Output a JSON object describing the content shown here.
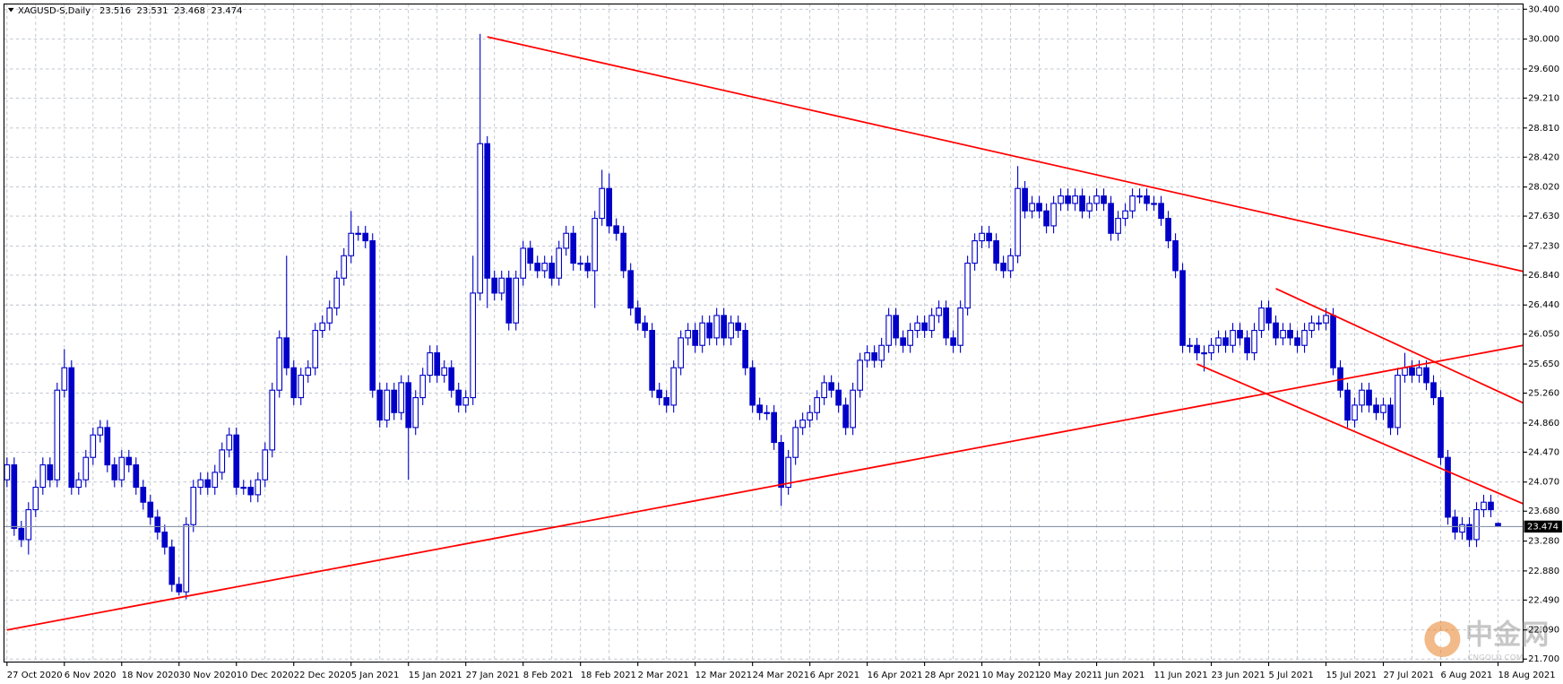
{
  "chart_data": {
    "type": "candlestick",
    "title": "XAGUSD-S,Daily",
    "categories": [
      "27 Oct 2020",
      null,
      null,
      null,
      null,
      null,
      null,
      null,
      "6 Nov 2020",
      null,
      null,
      null,
      null,
      null,
      null,
      null,
      "18 Nov 2020",
      null,
      null,
      null,
      null,
      null,
      null,
      null,
      "30 Nov 2020",
      null,
      null,
      null,
      null,
      null,
      null,
      null,
      "10 Dec 2020",
      null,
      null,
      null,
      null,
      null,
      null,
      null,
      "22 Dec 2020",
      null,
      null,
      null,
      null,
      null,
      null,
      null,
      "5 Jan 2021",
      null,
      null,
      null,
      null,
      null,
      null,
      null,
      "15 Jan 2021",
      null,
      null,
      null,
      null,
      null,
      null,
      null,
      "27 Jan 2021",
      null,
      null,
      null,
      null,
      null,
      null,
      null,
      "8 Feb 2021",
      null,
      null,
      null,
      null,
      null,
      null,
      null,
      "18 Feb 2021",
      null,
      null,
      null,
      null,
      null,
      null,
      null,
      "2 Mar 2021",
      null,
      null,
      null,
      null,
      null,
      null,
      null,
      "12 Mar 2021",
      null,
      null,
      null,
      null,
      null,
      null,
      null,
      "24 Mar 2021",
      null,
      null,
      null,
      null,
      null,
      null,
      null,
      "6 Apr 2021",
      null,
      null,
      null,
      null,
      null,
      null,
      null,
      "16 Apr 2021",
      null,
      null,
      null,
      null,
      null,
      null,
      null,
      "28 Apr 2021",
      null,
      null,
      null,
      null,
      null,
      null,
      null,
      "10 May 2021",
      null,
      null,
      null,
      null,
      null,
      null,
      null,
      "20 May 2021",
      null,
      null,
      null,
      null,
      null,
      null,
      null,
      "1 Jun 2021",
      null,
      null,
      null,
      null,
      null,
      null,
      null,
      "11 Jun 2021",
      null,
      null,
      null,
      null,
      null,
      null,
      null,
      "23 Jun 2021",
      null,
      null,
      null,
      null,
      null,
      null,
      null,
      "5 Jul 2021",
      null,
      null,
      null,
      null,
      null,
      null,
      null,
      "15 Jul 2021",
      null,
      null,
      null,
      null,
      null,
      null,
      null,
      "27 Jul 2021",
      null,
      null,
      null,
      null,
      null,
      null,
      null,
      "6 Aug 2021",
      null,
      null,
      null,
      null,
      null,
      null,
      null,
      "18 Aug 2021"
    ],
    "open": [
      24.1,
      24.3,
      23.45,
      23.3,
      23.7,
      24.0,
      24.3,
      24.1,
      25.3,
      25.6,
      24.0,
      24.1,
      24.4,
      24.7,
      24.8,
      24.3,
      24.1,
      24.4,
      24.3,
      24.0,
      23.8,
      23.6,
      23.4,
      23.2,
      22.7,
      22.6,
      23.5,
      24.0,
      24.1,
      24.0,
      24.2,
      24.5,
      24.7,
      24.0,
      24.0,
      23.9,
      24.1,
      24.5,
      25.3,
      26.0,
      25.6,
      25.2,
      25.5,
      25.6,
      26.1,
      26.2,
      26.4,
      26.8,
      27.1,
      27.4,
      27.4,
      27.3,
      25.3,
      24.9,
      25.3,
      25.0,
      25.4,
      24.8,
      25.2,
      25.5,
      25.8,
      25.5,
      25.6,
      25.3,
      25.1,
      25.2,
      26.6,
      28.6,
      26.8,
      26.6,
      26.8,
      26.2,
      26.8,
      27.2,
      27.0,
      26.9,
      27.0,
      26.8,
      27.2,
      27.4,
      27.0,
      27.0,
      26.9,
      27.6,
      28.0,
      27.5,
      27.4,
      26.9,
      26.4,
      26.2,
      26.1,
      25.3,
      25.2,
      25.1,
      25.6,
      26.0,
      26.1,
      25.9,
      26.2,
      26.0,
      26.3,
      26.0,
      26.2,
      26.1,
      25.6,
      25.1,
      25.0,
      25.0,
      24.6,
      24.0,
      24.4,
      24.8,
      24.9,
      25.0,
      25.2,
      25.4,
      25.3,
      25.1,
      24.8,
      25.3,
      25.7,
      25.8,
      25.7,
      25.9,
      26.3,
      26.0,
      25.9,
      26.1,
      26.2,
      26.1,
      26.3,
      26.4,
      26.0,
      25.9,
      26.4,
      27.0,
      27.3,
      27.4,
      27.3,
      27.0,
      26.9,
      27.1,
      28.0,
      27.7,
      27.8,
      27.7,
      27.5,
      27.8,
      27.9,
      27.8,
      27.9,
      27.7,
      27.8,
      27.9,
      27.8,
      27.4,
      27.6,
      27.7,
      27.9,
      27.9,
      27.8,
      27.8,
      27.6,
      27.3,
      26.9,
      25.9,
      25.9,
      25.8,
      25.8,
      25.9,
      26.0,
      25.9,
      26.1,
      26.0,
      25.8,
      26.1,
      26.4,
      26.2,
      26.0,
      26.1,
      26.0,
      25.9,
      26.1,
      26.2,
      26.2,
      26.3,
      25.6,
      25.3,
      24.9,
      25.1,
      25.3,
      25.1,
      25.0,
      25.1,
      24.8,
      25.5,
      25.6,
      25.5,
      25.6,
      25.4,
      25.2,
      24.4,
      23.6,
      23.4,
      23.5,
      23.3,
      23.7,
      23.8,
      23.516
    ],
    "high": [
      24.4,
      24.4,
      23.55,
      23.8,
      24.1,
      24.4,
      24.4,
      25.4,
      25.85,
      25.7,
      24.2,
      24.5,
      24.8,
      24.9,
      24.9,
      24.4,
      24.5,
      24.5,
      24.4,
      24.1,
      23.9,
      23.7,
      23.5,
      23.3,
      22.8,
      23.6,
      24.1,
      24.2,
      24.2,
      24.3,
      24.6,
      24.8,
      24.8,
      24.1,
      24.1,
      24.2,
      24.6,
      25.4,
      26.1,
      27.1,
      25.7,
      25.6,
      25.7,
      26.2,
      26.3,
      26.5,
      26.9,
      27.2,
      27.7,
      27.5,
      27.5,
      27.4,
      25.4,
      25.4,
      25.4,
      25.5,
      25.5,
      25.3,
      25.6,
      25.9,
      25.9,
      25.7,
      25.7,
      25.4,
      25.3,
      27.1,
      30.07,
      28.7,
      26.9,
      26.9,
      26.9,
      26.9,
      27.3,
      27.3,
      27.1,
      27.1,
      27.1,
      27.3,
      27.5,
      27.5,
      27.1,
      27.1,
      27.7,
      28.25,
      28.2,
      27.6,
      27.5,
      27.0,
      26.5,
      26.3,
      26.2,
      25.4,
      25.3,
      25.7,
      26.1,
      26.2,
      26.2,
      26.3,
      26.3,
      26.4,
      26.4,
      26.3,
      26.3,
      26.2,
      25.7,
      25.2,
      25.1,
      25.1,
      24.7,
      24.5,
      24.9,
      25.0,
      25.1,
      25.3,
      25.5,
      25.5,
      25.4,
      25.2,
      25.4,
      25.8,
      25.9,
      25.9,
      26.0,
      26.4,
      26.4,
      26.1,
      26.2,
      26.3,
      26.3,
      26.4,
      26.5,
      26.5,
      26.1,
      26.5,
      27.1,
      27.4,
      27.5,
      27.5,
      27.4,
      27.1,
      27.2,
      28.3,
      28.1,
      27.9,
      27.9,
      27.8,
      27.9,
      28.0,
      28.0,
      28.0,
      28.0,
      27.9,
      28.0,
      28.0,
      27.9,
      27.7,
      27.8,
      28.0,
      28.0,
      28.0,
      27.9,
      27.9,
      27.7,
      27.4,
      27.0,
      26.0,
      26.0,
      25.9,
      26.0,
      26.1,
      26.1,
      26.2,
      26.2,
      26.1,
      26.2,
      26.5,
      26.5,
      26.3,
      26.2,
      26.2,
      26.1,
      26.2,
      26.3,
      26.3,
      26.4,
      26.4,
      25.7,
      25.4,
      25.2,
      25.4,
      25.4,
      25.2,
      25.2,
      25.2,
      25.6,
      25.8,
      25.7,
      25.7,
      25.7,
      25.5,
      25.3,
      24.5,
      23.7,
      23.6,
      23.6,
      23.8,
      23.9,
      23.9,
      23.531
    ],
    "low": [
      24.0,
      23.35,
      23.2,
      23.1,
      23.6,
      23.9,
      24.0,
      24.0,
      25.2,
      23.9,
      23.9,
      24.0,
      24.3,
      24.6,
      24.2,
      24.0,
      24.0,
      24.2,
      23.9,
      23.7,
      23.5,
      23.3,
      23.1,
      22.6,
      22.55,
      22.5,
      23.4,
      23.9,
      23.9,
      23.9,
      24.1,
      24.4,
      23.9,
      23.9,
      23.8,
      23.8,
      24.0,
      24.4,
      25.2,
      25.5,
      25.1,
      25.1,
      25.4,
      25.5,
      26.0,
      26.1,
      26.3,
      26.7,
      27.0,
      27.3,
      27.2,
      25.2,
      24.8,
      24.8,
      24.9,
      24.9,
      24.1,
      24.7,
      25.1,
      25.4,
      25.4,
      25.4,
      25.2,
      25.0,
      25.0,
      25.1,
      26.5,
      26.4,
      26.5,
      26.5,
      26.1,
      26.1,
      26.7,
      26.9,
      26.8,
      26.8,
      26.7,
      26.7,
      27.1,
      26.9,
      26.9,
      26.8,
      26.4,
      27.5,
      27.4,
      27.3,
      26.8,
      26.3,
      26.1,
      26.0,
      25.2,
      25.1,
      25.0,
      25.0,
      25.5,
      25.9,
      25.8,
      25.8,
      25.9,
      25.9,
      25.9,
      25.9,
      26.0,
      25.5,
      25.0,
      24.9,
      24.9,
      24.5,
      23.75,
      23.9,
      24.3,
      24.7,
      24.8,
      24.9,
      25.1,
      25.2,
      25.0,
      24.7,
      24.7,
      25.2,
      25.6,
      25.6,
      25.6,
      25.8,
      25.9,
      25.8,
      25.8,
      26.0,
      26.0,
      26.0,
      26.2,
      25.9,
      25.8,
      25.8,
      26.3,
      26.9,
      27.2,
      27.2,
      26.9,
      26.8,
      26.8,
      27.0,
      27.6,
      27.6,
      27.6,
      27.4,
      27.4,
      27.7,
      27.7,
      27.7,
      27.6,
      27.6,
      27.7,
      27.7,
      27.3,
      27.3,
      27.5,
      27.6,
      27.8,
      27.7,
      27.7,
      27.5,
      27.2,
      26.8,
      25.8,
      25.8,
      25.7,
      25.55,
      25.7,
      25.8,
      25.8,
      25.8,
      25.9,
      25.7,
      25.7,
      26.0,
      26.1,
      25.9,
      25.9,
      25.9,
      25.8,
      25.8,
      26.0,
      26.1,
      26.1,
      25.5,
      25.2,
      24.8,
      24.8,
      25.0,
      25.0,
      24.9,
      24.9,
      24.7,
      24.7,
      25.4,
      25.4,
      25.4,
      25.3,
      25.1,
      24.3,
      23.5,
      23.3,
      23.3,
      23.2,
      23.2,
      23.6,
      23.6,
      23.468
    ],
    "close": [
      24.3,
      23.45,
      23.3,
      23.7,
      24.0,
      24.3,
      24.1,
      25.3,
      25.6,
      24.0,
      24.1,
      24.4,
      24.7,
      24.8,
      24.3,
      24.1,
      24.4,
      24.3,
      24.0,
      23.8,
      23.6,
      23.4,
      23.2,
      22.7,
      22.6,
      23.5,
      24.0,
      24.1,
      24.0,
      24.2,
      24.5,
      24.7,
      24.0,
      24.0,
      23.9,
      24.1,
      24.5,
      25.3,
      26.0,
      25.6,
      25.2,
      25.5,
      25.6,
      26.1,
      26.2,
      26.4,
      26.8,
      27.1,
      27.4,
      27.4,
      27.3,
      25.3,
      24.9,
      25.3,
      25.0,
      25.4,
      24.8,
      25.2,
      25.5,
      25.8,
      25.5,
      25.6,
      25.3,
      25.1,
      25.2,
      26.6,
      28.6,
      26.8,
      26.6,
      26.8,
      26.2,
      26.8,
      27.2,
      27.0,
      26.9,
      27.0,
      26.8,
      27.2,
      27.4,
      27.0,
      27.0,
      26.9,
      27.6,
      28.0,
      27.5,
      27.4,
      26.9,
      26.4,
      26.2,
      26.1,
      25.3,
      25.2,
      25.1,
      25.6,
      26.0,
      26.1,
      25.9,
      26.2,
      26.0,
      26.3,
      26.0,
      26.2,
      26.1,
      25.6,
      25.1,
      25.0,
      25.0,
      24.6,
      24.0,
      24.4,
      24.8,
      24.9,
      25.0,
      25.2,
      25.4,
      25.3,
      25.1,
      24.8,
      25.3,
      25.7,
      25.8,
      25.7,
      25.9,
      26.3,
      26.0,
      25.9,
      26.1,
      26.2,
      26.1,
      26.3,
      26.4,
      26.0,
      25.9,
      26.4,
      27.0,
      27.3,
      27.4,
      27.3,
      27.0,
      26.9,
      27.1,
      28.0,
      27.7,
      27.8,
      27.7,
      27.5,
      27.8,
      27.9,
      27.8,
      27.9,
      27.7,
      27.8,
      27.9,
      27.8,
      27.4,
      27.6,
      27.7,
      27.9,
      27.9,
      27.8,
      27.8,
      27.6,
      27.3,
      26.9,
      25.9,
      25.9,
      25.8,
      25.8,
      25.9,
      26.0,
      25.9,
      26.1,
      26.0,
      25.8,
      26.1,
      26.4,
      26.2,
      26.0,
      26.1,
      26.0,
      25.9,
      26.1,
      26.2,
      26.2,
      26.3,
      25.6,
      25.3,
      24.9,
      25.1,
      25.3,
      25.1,
      25.0,
      25.1,
      24.8,
      25.5,
      25.6,
      25.5,
      25.6,
      25.4,
      25.2,
      24.4,
      23.6,
      23.4,
      23.5,
      23.3,
      23.7,
      23.8,
      23.7,
      23.474
    ],
    "color": "#0000c8",
    "up_fill": "#ffffff",
    "xlim": [
      -0.42,
      211.5
    ],
    "ylim": [
      21.66,
      30.47
    ],
    "yticks": [
      {
        "value": 30.4,
        "label": "30.400"
      },
      {
        "value": 30.0,
        "label": "30.000"
      },
      {
        "value": 29.6,
        "label": "29.600"
      },
      {
        "value": 29.21,
        "label": "29.210"
      },
      {
        "value": 28.81,
        "label": "28.810"
      },
      {
        "value": 28.42,
        "label": "28.420"
      },
      {
        "value": 28.02,
        "label": "28.020"
      },
      {
        "value": 27.63,
        "label": "27.630"
      },
      {
        "value": 27.23,
        "label": "27.230"
      },
      {
        "value": 26.84,
        "label": "26.840"
      },
      {
        "value": 26.44,
        "label": "26.440"
      },
      {
        "value": 26.05,
        "label": "26.050"
      },
      {
        "value": 25.65,
        "label": "25.650"
      },
      {
        "value": 25.26,
        "label": "25.260"
      },
      {
        "value": 24.86,
        "label": "24.860"
      },
      {
        "value": 24.47,
        "label": "24.470"
      },
      {
        "value": 24.07,
        "label": "24.070"
      },
      {
        "value": 23.68,
        "label": "23.680"
      },
      {
        "value": 23.28,
        "label": "23.280"
      },
      {
        "value": 22.88,
        "label": "22.880"
      },
      {
        "value": 22.49,
        "label": "22.490"
      },
      {
        "value": 22.09,
        "label": "22.090"
      },
      {
        "value": 21.7,
        "label": "21.700"
      }
    ],
    "grid": true,
    "price_line_color": "#8896aa",
    "trendlines": [
      {
        "x": [
          67,
          211.5
        ],
        "y": [
          30.03,
          26.89
        ],
        "color": "#ff0000"
      },
      {
        "x": [
          0,
          211.5
        ],
        "y": [
          22.09,
          25.9
        ],
        "color": "#ff0000"
      },
      {
        "x": [
          177,
          211.5
        ],
        "y": [
          26.66,
          25.13
        ],
        "color": "#ff0000"
      },
      {
        "x": [
          166,
          211.5
        ],
        "y": [
          25.65,
          23.78
        ],
        "color": "#ff0000"
      }
    ]
  },
  "watermark": {
    "text": "中金网",
    "subtext": "CNGOLD.COM"
  }
}
